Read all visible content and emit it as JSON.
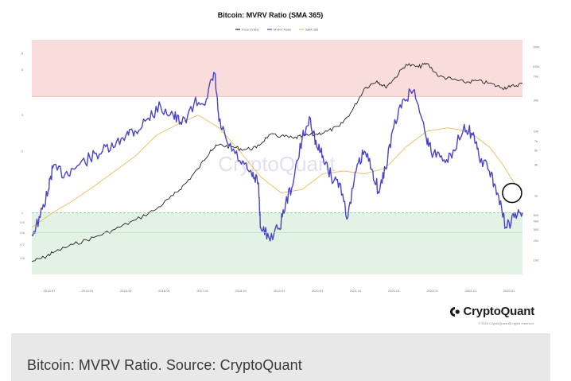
{
  "chart_data": {
    "type": "line",
    "title": "Bitcoin: MVRV Ratio (SMA 365)",
    "legend": {
      "placement": "top-center",
      "entries": [
        {
          "label": "Price (USD)",
          "color": "#222222"
        },
        {
          "label": "MVRV Ratio",
          "color": "#4a44c8"
        },
        {
          "label": "SMA 365",
          "color": "#e8c05a"
        }
      ]
    },
    "grid": false,
    "left_axis": {
      "scale": "log",
      "ylim": [
        0.5,
        7
      ],
      "ticks": [
        {
          "value": 6,
          "label": "6"
        },
        {
          "value": 5,
          "label": "5"
        },
        {
          "value": 3,
          "label": "3"
        },
        {
          "value": 2,
          "label": "2"
        },
        {
          "value": 1,
          "label": "1"
        },
        {
          "value": 0.9,
          "label": "0.9"
        },
        {
          "value": 0.8,
          "label": "0.8"
        },
        {
          "value": 0.7,
          "label": "0.7"
        },
        {
          "value": 0.6,
          "label": "0.6"
        }
      ]
    },
    "right_axis": {
      "scale": "log",
      "ticks": [
        {
          "value": 200000,
          "label": "200k"
        },
        {
          "value": 100000,
          "label": "100k"
        },
        {
          "value": 70000,
          "label": "70k"
        },
        {
          "value": 30000,
          "label": "30k"
        },
        {
          "value": 10000,
          "label": "10k"
        },
        {
          "value": 7000,
          "label": "7k"
        },
        {
          "value": 5000,
          "label": "5k"
        },
        {
          "value": 3000,
          "label": "3k"
        },
        {
          "value": 1000,
          "label": "1k"
        },
        {
          "value": 500,
          "label": "500"
        },
        {
          "value": 400,
          "label": "400"
        },
        {
          "value": 300,
          "label": "300"
        },
        {
          "value": 200,
          "label": "200"
        },
        {
          "value": 100,
          "label": "100"
        }
      ]
    },
    "x_ticks": [
      "2013-07",
      "2014-01",
      "2015-01",
      "2016-01",
      "2017-01",
      "2018-01",
      "2019-01",
      "2020-01",
      "2021-01",
      "2022-01",
      "2023-01",
      "2024-01",
      "2025-01"
    ],
    "xlim": [
      2013.5,
      2025.3
    ],
    "bands": [
      {
        "name": "overvalued",
        "from": 3.7,
        "to": 7,
        "color": "#f9dcdc"
      },
      {
        "name": "undervalued",
        "from": 0.5,
        "to": 1.0,
        "color": "#e2f2e4"
      }
    ],
    "reference_lines": [
      {
        "value": 3.7,
        "color": "#e8a6a6"
      },
      {
        "value": 1.0,
        "color": "#7fbf85",
        "style": "dashed"
      }
    ],
    "series": [
      {
        "key": "mvrv",
        "color": "#4a44c8",
        "x": [
          2013.5,
          2013.7,
          2013.9,
          2014.0,
          2014.3,
          2014.6,
          2014.9,
          2015.2,
          2015.5,
          2015.8,
          2016.0,
          2016.3,
          2016.6,
          2016.9,
          2017.1,
          2017.4,
          2017.7,
          2017.9,
          2018.0,
          2018.2,
          2018.5,
          2018.8,
          2018.95,
          2019.0,
          2019.2,
          2019.45,
          2019.6,
          2019.8,
          2020.0,
          2020.2,
          2020.35,
          2020.5,
          2020.7,
          2020.9,
          2021.1,
          2021.3,
          2021.5,
          2021.7,
          2021.85,
          2022.0,
          2022.2,
          2022.45,
          2022.7,
          2022.95,
          2023.1,
          2023.35,
          2023.6,
          2023.9,
          2024.1,
          2024.25,
          2024.5,
          2024.7,
          2024.9,
          2025.1,
          2025.3
        ],
        "values": [
          0.78,
          0.95,
          1.3,
          1.65,
          1.55,
          1.7,
          1.85,
          2.0,
          2.1,
          2.5,
          2.5,
          2.9,
          3.3,
          3.0,
          2.7,
          3.4,
          3.6,
          4.8,
          2.8,
          2.2,
          1.8,
          1.5,
          1.4,
          0.85,
          0.76,
          0.84,
          1.1,
          1.45,
          2.3,
          2.9,
          2.1,
          1.9,
          1.5,
          1.4,
          0.95,
          1.6,
          2.0,
          1.6,
          1.25,
          1.65,
          2.6,
          3.6,
          4.0,
          2.5,
          2.0,
          1.9,
          1.85,
          2.7,
          2.4,
          1.9,
          1.6,
          1.25,
          0.85,
          0.95,
          1.0
        ]
      },
      {
        "key": "price",
        "color": "#222222",
        "x": [
          2013.5,
          2013.8,
          2014.0,
          2014.5,
          2015.0,
          2015.5,
          2016.0,
          2016.5,
          2016.9,
          2017.2,
          2017.5,
          2017.8,
          2018.0,
          2018.3,
          2018.6,
          2018.9,
          2019.2,
          2019.5,
          2019.8,
          2020.0,
          2020.3,
          2020.6,
          2020.9,
          2021.2,
          2021.5,
          2021.8,
          2022.0,
          2022.2,
          2022.5,
          2022.8,
          2023.0,
          2023.3,
          2023.6,
          2023.9,
          2024.2,
          2024.5,
          2024.8,
          2025.0,
          2025.3
        ],
        "values": [
          95,
          110,
          130,
          175,
          225,
          300,
          420,
          620,
          1000,
          1550,
          2600,
          5100,
          6100,
          5700,
          5200,
          5500,
          8600,
          8400,
          7700,
          8300,
          8800,
          9900,
          11800,
          20500,
          46000,
          60000,
          48000,
          63000,
          108000,
          98000,
          112000,
          70000,
          64000,
          57000,
          60000,
          55000,
          47000,
          48000,
          55000
        ]
      },
      {
        "key": "sma365",
        "color": "#e8c05a",
        "x": [
          2013.5,
          2014.0,
          2014.5,
          2015.0,
          2015.5,
          2016.0,
          2016.5,
          2017.0,
          2017.5,
          2018.0,
          2018.5,
          2019.0,
          2019.5,
          2020.0,
          2020.5,
          2021.0,
          2021.5,
          2022.0,
          2022.5,
          2023.0,
          2023.5,
          2024.0,
          2024.5,
          2024.8,
          2025.1,
          2025.3
        ],
        "values": [
          0.85,
          1.0,
          1.15,
          1.35,
          1.6,
          1.9,
          2.4,
          2.7,
          3.0,
          2.6,
          2.0,
          1.5,
          1.25,
          1.3,
          1.55,
          1.6,
          1.55,
          1.65,
          2.1,
          2.5,
          2.6,
          2.5,
          2.1,
          1.75,
          1.4,
          1.3
        ]
      }
    ],
    "annotation": {
      "type": "circle",
      "x": 2025.05,
      "y": 1.25,
      "color": "#111111"
    }
  },
  "watermark": "CryptoQuant",
  "brand": {
    "name": "CryptoQuant",
    "copyright": "© 2024 CryptoQuant All rights reserved."
  },
  "caption": "Bitcoin: MVRV Ratio. Source: CryptoQuant"
}
